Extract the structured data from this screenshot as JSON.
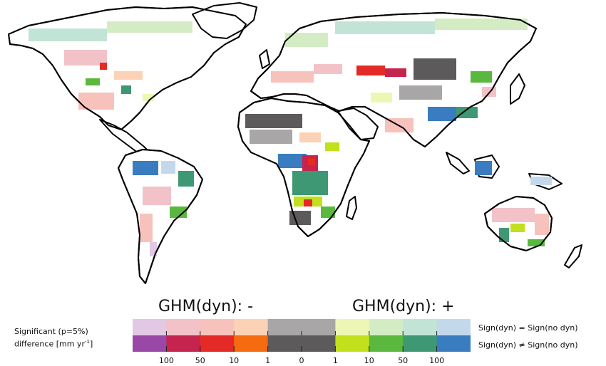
{
  "legend": {
    "title_negative": "GHM(dyn): -",
    "title_positive": "GHM(dyn): +",
    "significance_label_line1": "Significant (p=5%)",
    "significance_label_line2_prefix": "difference [mm yr",
    "significance_label_exponent": "-1",
    "significance_label_suffix": "]",
    "row_same_sign": "Sign(dyn) = Sign(no dyn)",
    "row_diff_sign": "Sign(dyn) ≠  Sign(no dyn)",
    "ticks": [
      "100",
      "50",
      "10",
      "1",
      "0",
      "1",
      "10",
      "50",
      "100"
    ],
    "colors_same_sign": [
      "#e2c8e4",
      "#f2c2c8",
      "#f8c2bc",
      "#fcd2b6",
      "#a8a6a6",
      "#a8a6a6",
      "#eef6b4",
      "#d4ecc4",
      "#c2e4d6",
      "#c4d8ec"
    ],
    "colors_diff_sign": [
      "#9a48a8",
      "#c4244e",
      "#e42a26",
      "#f66a10",
      "#5c5a5a",
      "#5c5a5a",
      "#c2e01c",
      "#5ab83e",
      "#3e9874",
      "#3a7cc0"
    ]
  },
  "map": {
    "land_color": "#ffffff",
    "coast_color": "#000000"
  }
}
